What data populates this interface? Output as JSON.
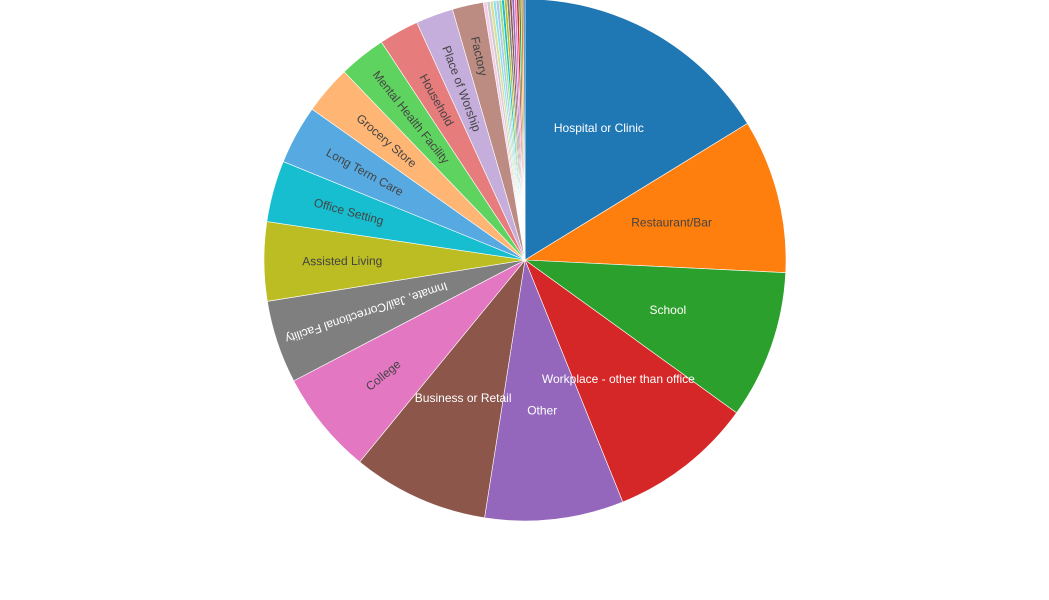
{
  "chart_data": {
    "type": "pie",
    "title": "",
    "start_angle_deg": 0,
    "direction": "clockwise",
    "sort": "descending",
    "slices": [
      {
        "label": "Hospital or Clinic",
        "value": 16.45,
        "color": "#1f77b4",
        "text_color": "#ffffff",
        "show_label": true
      },
      {
        "label": "Restaurant/Bar",
        "value": 9.66,
        "color": "#ff7f0e",
        "text_color": "#444444",
        "show_label": true
      },
      {
        "label": "School",
        "value": 9.3,
        "color": "#2ca02c",
        "text_color": "#ffffff",
        "show_label": true
      },
      {
        "label": "Workplace - other than office",
        "value": 9.05,
        "color": "#d62728",
        "text_color": "#ffffff",
        "show_label": true
      },
      {
        "label": "Other",
        "value": 8.7,
        "color": "#9467bd",
        "text_color": "#ffffff",
        "show_label": true
      },
      {
        "label": "Business or Retail",
        "value": 8.55,
        "color": "#8c564b",
        "text_color": "#ffffff",
        "show_label": true
      },
      {
        "label": "College",
        "value": 6.5,
        "color": "#e377c2",
        "text_color": "#444444",
        "show_label": true
      },
      {
        "label": "Inmate, Jail/Correctional Facility",
        "value": 5.2,
        "color": "#7f7f7f",
        "text_color": "#ffffff",
        "show_label": true
      },
      {
        "label": "Assisted Living",
        "value": 4.95,
        "color": "#bcbd22",
        "text_color": "#444444",
        "show_label": true
      },
      {
        "label": "Office Setting",
        "value": 3.85,
        "color": "#17becf",
        "text_color": "#444444",
        "show_label": true
      },
      {
        "label": "Long Term Care",
        "value": 3.7,
        "color": "#57a9e2",
        "text_color": "#444444",
        "show_label": true
      },
      {
        "label": "Grocery Store",
        "value": 3.05,
        "color": "#ffb574",
        "text_color": "#444444",
        "show_label": true
      },
      {
        "label": "Mental Health Facility",
        "value": 2.95,
        "color": "#5fd35f",
        "text_color": "#444444",
        "show_label": true
      },
      {
        "label": "Household",
        "value": 2.5,
        "color": "#e77c7c",
        "text_color": "#444444",
        "show_label": true
      },
      {
        "label": "Place of Worship",
        "value": 2.35,
        "color": "#c6aedc",
        "text_color": "#444444",
        "show_label": true
      },
      {
        "label": "Factory",
        "value": 1.95,
        "color": "#bc8b81",
        "text_color": "#444444",
        "show_label": true
      },
      {
        "label": "",
        "value": 0.22,
        "color": "#f4cce8",
        "text_color": "#444444",
        "show_label": false
      },
      {
        "label": "",
        "value": 0.2,
        "color": "#cccccc",
        "text_color": "#444444",
        "show_label": false
      },
      {
        "label": "",
        "value": 0.19,
        "color": "#dcdd96",
        "text_color": "#444444",
        "show_label": false
      },
      {
        "label": "",
        "value": 0.18,
        "color": "#8ee2ec",
        "text_color": "#444444",
        "show_label": false
      },
      {
        "label": "",
        "value": 0.18,
        "color": "#aec7e8",
        "text_color": "#444444",
        "show_label": false
      },
      {
        "label": "",
        "value": 0.17,
        "color": "#98df8a",
        "text_color": "#444444",
        "show_label": false
      },
      {
        "label": "",
        "value": 0.17,
        "color": "#17becf",
        "text_color": "#444444",
        "show_label": false
      },
      {
        "label": "",
        "value": 0.16,
        "color": "#bcbd22",
        "text_color": "#444444",
        "show_label": false
      },
      {
        "label": "",
        "value": 0.16,
        "color": "#7f7f7f",
        "text_color": "#444444",
        "show_label": false
      },
      {
        "label": "",
        "value": 0.15,
        "color": "#8c564b",
        "text_color": "#444444",
        "show_label": false
      },
      {
        "label": "",
        "value": 0.15,
        "color": "#9467bd",
        "text_color": "#444444",
        "show_label": false
      },
      {
        "label": "",
        "value": 0.14,
        "color": "#e377c2",
        "text_color": "#444444",
        "show_label": false
      },
      {
        "label": "",
        "value": 0.14,
        "color": "#d62728",
        "text_color": "#444444",
        "show_label": false
      },
      {
        "label": "",
        "value": 0.13,
        "color": "#2ca02c",
        "text_color": "#444444",
        "show_label": false
      },
      {
        "label": "",
        "value": 0.13,
        "color": "#ff7f0e",
        "text_color": "#444444",
        "show_label": false
      },
      {
        "label": "",
        "value": 0.12,
        "color": "#1f77b4",
        "text_color": "#444444",
        "show_label": false
      }
    ]
  }
}
